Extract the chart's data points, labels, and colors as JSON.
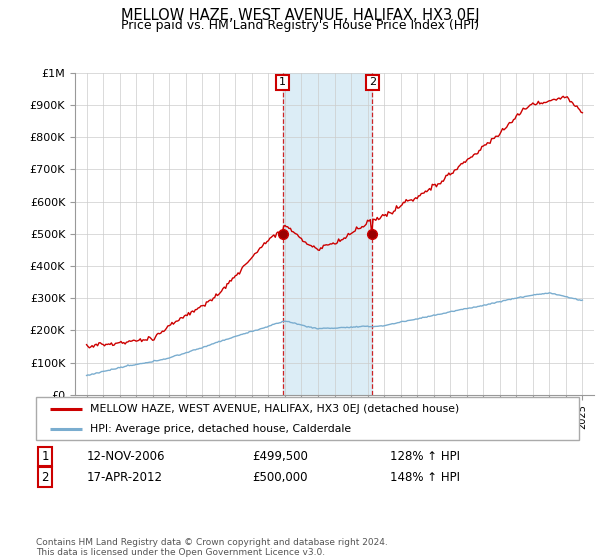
{
  "title": "MELLOW HAZE, WEST AVENUE, HALIFAX, HX3 0EJ",
  "subtitle": "Price paid vs. HM Land Registry's House Price Index (HPI)",
  "title_fontsize": 10.5,
  "subtitle_fontsize": 9,
  "ylabel_ticks": [
    "£0",
    "£100K",
    "£200K",
    "£300K",
    "£400K",
    "£500K",
    "£600K",
    "£700K",
    "£800K",
    "£900K",
    "£1M"
  ],
  "ytick_values": [
    0,
    100000,
    200000,
    300000,
    400000,
    500000,
    600000,
    700000,
    800000,
    900000,
    1000000
  ],
  "ylim": [
    0,
    1000000
  ],
  "sale1_date": 2006.87,
  "sale1_price": 499500,
  "sale1_label": "1",
  "sale1_info": "12-NOV-2006",
  "sale1_price_str": "£499,500",
  "sale1_hpi": "128% ↑ HPI",
  "sale2_date": 2012.29,
  "sale2_price": 500000,
  "sale2_label": "2",
  "sale2_info": "17-APR-2012",
  "sale2_price_str": "£500,000",
  "sale2_hpi": "148% ↑ HPI",
  "red_color": "#cc0000",
  "blue_color": "#7aadcf",
  "shade_color": "#d6eaf5",
  "grid_color": "#cccccc",
  "footer": "Contains HM Land Registry data © Crown copyright and database right 2024.\nThis data is licensed under the Open Government Licence v3.0.",
  "legend_label_red": "MELLOW HAZE, WEST AVENUE, HALIFAX, HX3 0EJ (detached house)",
  "legend_label_blue": "HPI: Average price, detached house, Calderdale"
}
